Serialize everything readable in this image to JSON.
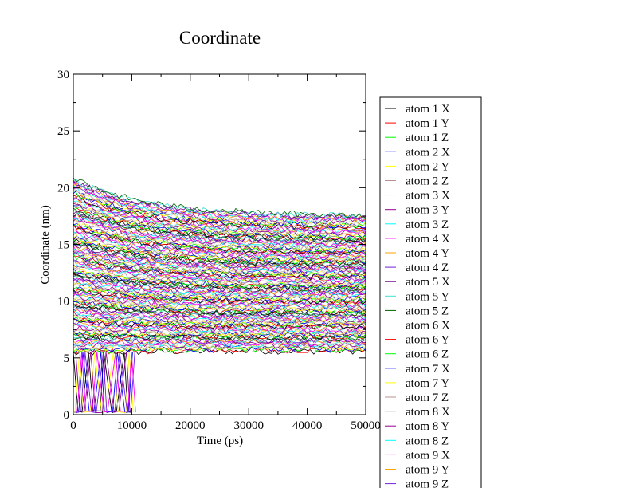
{
  "chart_data": {
    "type": "line",
    "title": "Coordinate",
    "xlabel": "Time (ps)",
    "ylabel": "Coordinate (nm)",
    "xlim": [
      0,
      50000
    ],
    "ylim": [
      0,
      30
    ],
    "x_ticks": [
      "0",
      "10000",
      "20000",
      "30000",
      "40000",
      "50000"
    ],
    "y_ticks": [
      "0",
      "5",
      "10",
      "15",
      "20",
      "25",
      "30"
    ],
    "grid": false,
    "legend_position": "right",
    "series": [
      {
        "name": "atom 1 X",
        "color": "#000000"
      },
      {
        "name": "atom 1 Y",
        "color": "#ff0000"
      },
      {
        "name": "atom 1 Z",
        "color": "#00ff00"
      },
      {
        "name": "atom 2 X",
        "color": "#0000ff"
      },
      {
        "name": "atom 2 Y",
        "color": "#ffff00"
      },
      {
        "name": "atom 2 Z",
        "color": "#bc8f8f"
      },
      {
        "name": "atom 3 X",
        "color": "#dcdcdc"
      },
      {
        "name": "atom 3 Y",
        "color": "#940094"
      },
      {
        "name": "atom 3 Z",
        "color": "#00ffff"
      },
      {
        "name": "atom 4 X",
        "color": "#ff00ff"
      },
      {
        "name": "atom 4 Y",
        "color": "#ffa500"
      },
      {
        "name": "atom 4 Z",
        "color": "#7220dc"
      },
      {
        "name": "atom 5 X",
        "color": "#67007f"
      },
      {
        "name": "atom 5 Y",
        "color": "#40e0d0"
      },
      {
        "name": "atom 5 Z",
        "color": "#006400"
      },
      {
        "name": "atom 6 X",
        "color": "#000000"
      },
      {
        "name": "atom 6 Y",
        "color": "#ff0000"
      },
      {
        "name": "atom 6 Z",
        "color": "#00ff00"
      },
      {
        "name": "atom 7 X",
        "color": "#0000ff"
      },
      {
        "name": "atom 7 Y",
        "color": "#ffff00"
      },
      {
        "name": "atom 7 Z",
        "color": "#bc8f8f"
      },
      {
        "name": "atom 8 X",
        "color": "#dcdcdc"
      },
      {
        "name": "atom 8 Y",
        "color": "#940094"
      },
      {
        "name": "atom 8 Z",
        "color": "#00ffff"
      },
      {
        "name": "atom 9 X",
        "color": "#ff00ff"
      },
      {
        "name": "atom 9 Y",
        "color": "#ffa500"
      },
      {
        "name": "atom 9 Z",
        "color": "#7220dc"
      }
    ]
  }
}
